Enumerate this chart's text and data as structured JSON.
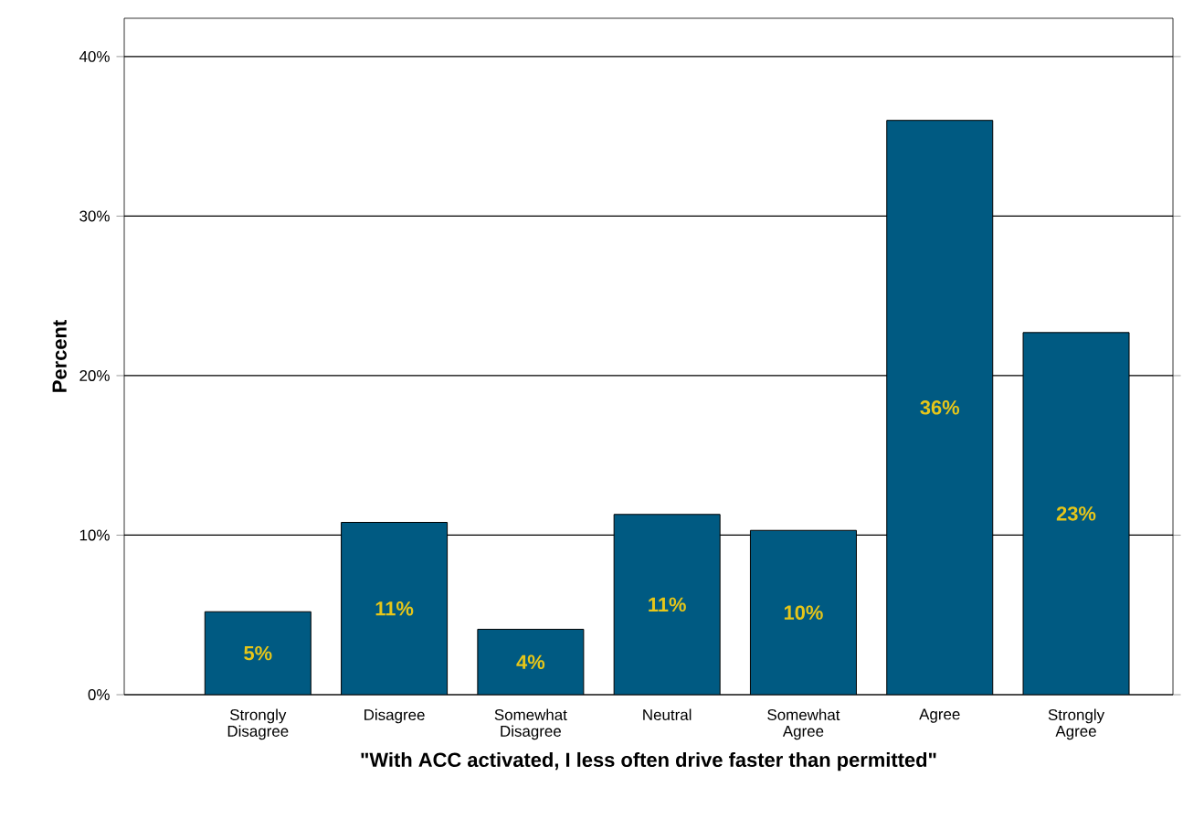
{
  "chart_data": {
    "type": "bar",
    "xlabel": "\"With ACC activated, I less often drive faster than permitted\"",
    "ylabel": "Percent",
    "categories": [
      "Strongly Disagree",
      "Disagree",
      "Somewhat Disagree",
      "Neutral",
      "Somewhat Agree",
      "Agree",
      "Strongly Agree"
    ],
    "values": [
      5.2,
      10.8,
      4.1,
      11.3,
      10.3,
      36.0,
      22.7
    ],
    "value_labels": [
      "5%",
      "11%",
      "4%",
      "11%",
      "10%",
      "36%",
      "23%"
    ],
    "color": "#005a82",
    "ylim": [
      0,
      42.4
    ],
    "yticks": [
      {
        "value": 0,
        "label": "0%"
      },
      {
        "value": 10,
        "label": "10%"
      },
      {
        "value": 20,
        "label": "20%"
      },
      {
        "value": 30,
        "label": "30%"
      },
      {
        "value": 40,
        "label": "40%"
      }
    ],
    "grid": "y"
  }
}
